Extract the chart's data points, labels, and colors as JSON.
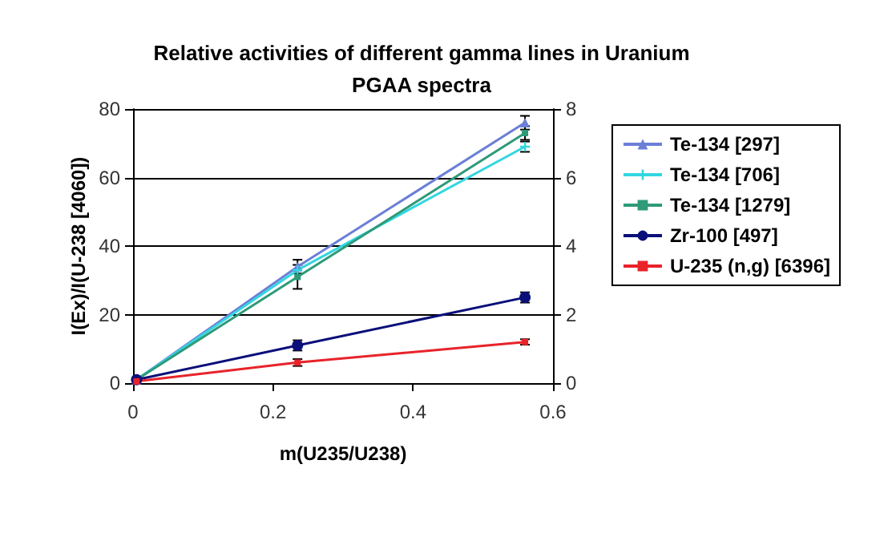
{
  "chart_data": {
    "type": "line",
    "title": "Relative activities of different gamma lines in Uranium\nPGAA spectra",
    "xlabel": "m(U235/U238)",
    "ylabel": "I(Ex)/I(U-238 [4060])",
    "xlim": [
      0,
      0.6
    ],
    "xticks": [
      0,
      0.2,
      0.4,
      0.6
    ],
    "ylim": [
      0,
      80
    ],
    "yticks": [
      0,
      20,
      40,
      60,
      80
    ],
    "y2lim": [
      0,
      8
    ],
    "y2ticks": [
      0,
      2,
      4,
      6,
      8
    ],
    "grid": "y",
    "legend": "right",
    "line_style": "solid",
    "x": [
      0.005,
      0.235,
      0.56
    ],
    "series": [
      {
        "name": "Te-134 [297]",
        "color": "#6b7fd7",
        "marker": "triangle",
        "values": [
          1,
          34,
          76
        ],
        "errors": [
          null,
          2,
          2
        ]
      },
      {
        "name": "Te-134 [706]",
        "color": "#33d6e0",
        "marker": "cross",
        "values": [
          1,
          33,
          69
        ],
        "errors": [
          null,
          null,
          1.5
        ]
      },
      {
        "name": "Te-134 [1279]",
        "color": "#2e9a78",
        "marker": "square",
        "values": [
          1,
          31,
          73
        ],
        "errors": [
          null,
          3.5,
          2
        ]
      },
      {
        "name": "Zr-100 [497]",
        "color": "#0a0f7a",
        "marker": "circle",
        "values": [
          1,
          11,
          25
        ],
        "errors": [
          null,
          1.5,
          1.5
        ]
      },
      {
        "name": "U-235 (n,g) [6396]",
        "color": "#e8232a",
        "marker": "square",
        "values": [
          0.5,
          6,
          12
        ],
        "errors": [
          null,
          1,
          0.8
        ]
      }
    ]
  }
}
